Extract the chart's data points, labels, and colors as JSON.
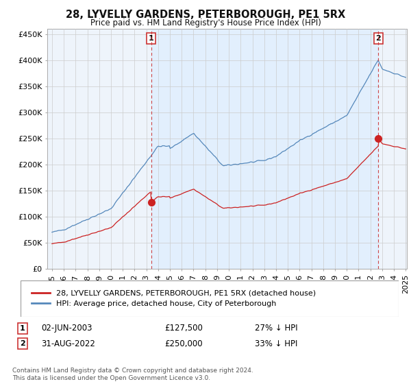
{
  "title": "28, LYVELLY GARDENS, PETERBOROUGH, PE1 5RX",
  "subtitle": "Price paid vs. HM Land Registry's House Price Index (HPI)",
  "legend_line1": "28, LYVELLY GARDENS, PETERBOROUGH, PE1 5RX (detached house)",
  "legend_line2": "HPI: Average price, detached house, City of Peterborough",
  "annotation1_label": "1",
  "annotation1_date": "02-JUN-2003",
  "annotation1_price": "£127,500",
  "annotation1_hpi": "27% ↓ HPI",
  "annotation2_label": "2",
  "annotation2_date": "31-AUG-2022",
  "annotation2_price": "£250,000",
  "annotation2_hpi": "33% ↓ HPI",
  "footnote": "Contains HM Land Registry data © Crown copyright and database right 2024.\nThis data is licensed under the Open Government Licence v3.0.",
  "ylim": [
    0,
    460000
  ],
  "yticks": [
    0,
    50000,
    100000,
    150000,
    200000,
    250000,
    300000,
    350000,
    400000,
    450000
  ],
  "hpi_color": "#5588bb",
  "sale_color": "#cc2222",
  "dashed_color": "#cc3333",
  "background_color": "#ffffff",
  "chart_bg_color": "#eef4fb",
  "shaded_color": "#ddeeff",
  "grid_color": "#cccccc",
  "sale1_year": 2003.42,
  "sale2_year": 2022.67,
  "sale1_price": 127500,
  "sale2_price": 250000
}
